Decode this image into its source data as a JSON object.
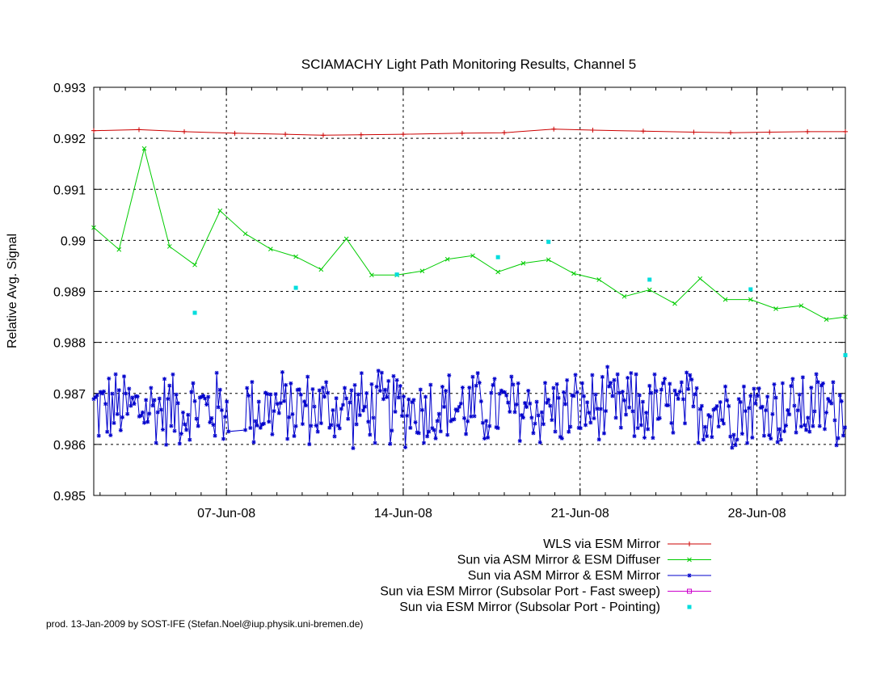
{
  "chart_data": {
    "type": "line",
    "title": "SCIAMACHY Light Path Monitoring Results, Channel 5",
    "ylabel": "Relative Avg. Signal",
    "xlabel": "",
    "x_unit": "date",
    "xlim": [
      "2008-06-01T18:00",
      "2008-07-01T12:00"
    ],
    "ylim": [
      0.985,
      0.993
    ],
    "x_ticks": [
      {
        "label": "07-Jun-08",
        "date": "2008-06-07"
      },
      {
        "label": "14-Jun-08",
        "date": "2008-06-14"
      },
      {
        "label": "21-Jun-08",
        "date": "2008-06-21"
      },
      {
        "label": "28-Jun-08",
        "date": "2008-06-28"
      }
    ],
    "y_ticks": [
      "0.985",
      "0.986",
      "0.987",
      "0.988",
      "0.989",
      "0.99",
      "0.991",
      "0.992",
      "0.993"
    ],
    "y_tick_values": [
      0.985,
      0.986,
      0.987,
      0.988,
      0.989,
      0.99,
      0.991,
      0.992,
      0.993
    ],
    "grid": true,
    "legend_position": "bottom-right, below plot",
    "series": [
      {
        "name": "WLS via ESM Mirror",
        "color": "#cc0000",
        "marker": "plus",
        "line": true,
        "points": [
          [
            "2008-06-01T18:00",
            0.99215
          ],
          [
            "2008-06-03T13:00",
            0.99217
          ],
          [
            "2008-06-05T08:00",
            0.99213
          ],
          [
            "2008-06-07T08:00",
            0.9921
          ],
          [
            "2008-06-09T08:00",
            0.99208
          ],
          [
            "2008-06-10T20:00",
            0.99206
          ],
          [
            "2008-06-12T08:00",
            0.99207
          ],
          [
            "2008-06-14T00:00",
            0.99208
          ],
          [
            "2008-06-16T08:00",
            0.9921
          ],
          [
            "2008-06-18T00:00",
            0.99211
          ],
          [
            "2008-06-19T23:00",
            0.99218
          ],
          [
            "2008-06-21T12:00",
            0.99216
          ],
          [
            "2008-06-23T12:00",
            0.99214
          ],
          [
            "2008-06-25T12:00",
            0.99212
          ],
          [
            "2008-06-26T23:00",
            0.99211
          ],
          [
            "2008-06-28T12:00",
            0.99212
          ],
          [
            "2008-06-30T00:00",
            0.99213
          ],
          [
            "2008-07-01T12:00",
            0.99213
          ]
        ]
      },
      {
        "name": "Sun via ASM Mirror & ESM Diffuser",
        "color": "#00cc00",
        "marker": "x",
        "line": true,
        "points": [
          [
            "2008-06-01T18:00",
            0.99025
          ],
          [
            "2008-06-02T18:00",
            0.98982
          ],
          [
            "2008-06-03T18:00",
            0.9918
          ],
          [
            "2008-06-04T18:00",
            0.98988
          ],
          [
            "2008-06-05T18:00",
            0.98952
          ],
          [
            "2008-06-06T18:00",
            0.99058
          ],
          [
            "2008-06-07T18:00",
            0.99013
          ],
          [
            "2008-06-08T18:00",
            0.98983
          ],
          [
            "2008-06-09T18:00",
            0.98968
          ],
          [
            "2008-06-10T18:00",
            0.98943
          ],
          [
            "2008-06-11T18:00",
            0.99003
          ],
          [
            "2008-06-12T18:00",
            0.98932
          ],
          [
            "2008-06-13T18:00",
            0.98932
          ],
          [
            "2008-06-14T18:00",
            0.9894
          ],
          [
            "2008-06-15T18:00",
            0.98963
          ],
          [
            "2008-06-16T18:00",
            0.9897
          ],
          [
            "2008-06-17T18:00",
            0.98938
          ],
          [
            "2008-06-18T18:00",
            0.98955
          ],
          [
            "2008-06-19T18:00",
            0.98962
          ],
          [
            "2008-06-20T18:00",
            0.98935
          ],
          [
            "2008-06-21T18:00",
            0.98923
          ],
          [
            "2008-06-22T18:00",
            0.9889
          ],
          [
            "2008-06-23T18:00",
            0.98903
          ],
          [
            "2008-06-24T18:00",
            0.98876
          ],
          [
            "2008-06-25T18:00",
            0.98925
          ],
          [
            "2008-06-26T18:00",
            0.98884
          ],
          [
            "2008-06-27T18:00",
            0.98884
          ],
          [
            "2008-06-28T18:00",
            0.98866
          ],
          [
            "2008-06-29T18:00",
            0.98872
          ],
          [
            "2008-06-30T18:00",
            0.98845
          ],
          [
            "2008-07-01T12:00",
            0.9885
          ]
        ]
      },
      {
        "name": "Sun via ASM Mirror & ESM Mirror",
        "color": "#0000cc",
        "marker": "star",
        "line": true,
        "generator": {
          "start": "2008-06-01T18:00",
          "end": "2008-07-01T12:00",
          "step_hours": 1.6,
          "gap": [
            "2008-06-07T02:00",
            "2008-06-07T18:00"
          ],
          "base": 0.9867,
          "amplitude": 0.00085
        },
        "points": []
      },
      {
        "name": "Sun via ESM Mirror (Subsolar Port - Fast sweep)",
        "color": "#cc00cc",
        "marker": "square",
        "line": true,
        "points": []
      },
      {
        "name": "Sun via ESM Mirror (Subsolar Port - Pointing)",
        "color": "#00dddd",
        "marker": "dot",
        "line": false,
        "points": [
          [
            "2008-06-05T18:00",
            0.98858
          ],
          [
            "2008-06-09T18:00",
            0.98907
          ],
          [
            "2008-06-13T18:00",
            0.98933
          ],
          [
            "2008-06-17T18:00",
            0.98967
          ],
          [
            "2008-06-19T18:00",
            0.98997
          ],
          [
            "2008-06-23T18:00",
            0.98923
          ],
          [
            "2008-06-27T18:00",
            0.98904
          ],
          [
            "2008-07-01T12:00",
            0.98775
          ]
        ]
      }
    ]
  },
  "footer": "prod. 13-Jan-2009 by SOST-IFE (Stefan.Noel@iup.physik.uni-bremen.de)"
}
